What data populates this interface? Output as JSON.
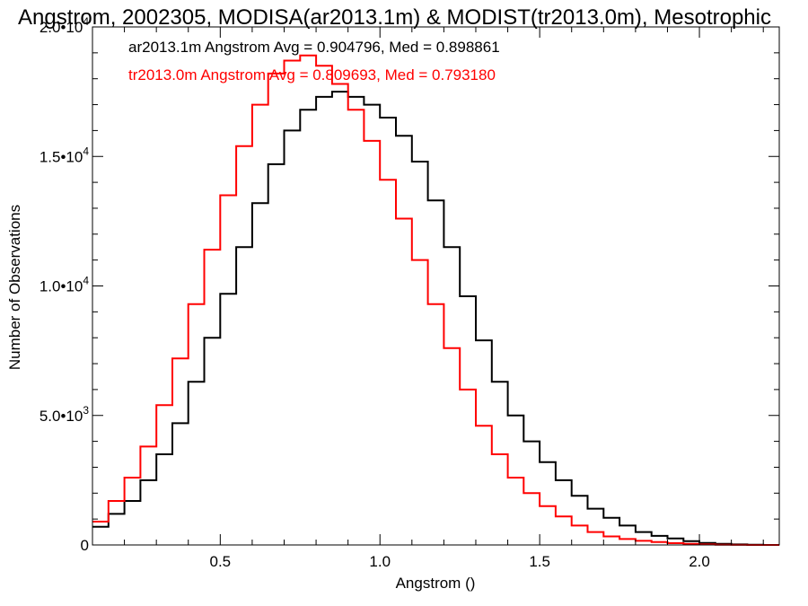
{
  "chart_data": {
    "type": "line",
    "title": "Angstrom, 2002305, MODISA(ar2013.1m) & MODIST(tr2013.0m), Mesotrophic",
    "xlabel": "Angstrom ()",
    "ylabel": "Number of Observations",
    "xlim": [
      0.1,
      2.25
    ],
    "ylim": [
      0,
      20000
    ],
    "x_ticks": [
      {
        "value": 0.5,
        "label": "0.5"
      },
      {
        "value": 1.0,
        "label": "1.0"
      },
      {
        "value": 1.5,
        "label": "1.5"
      },
      {
        "value": 2.0,
        "label": "2.0"
      }
    ],
    "y_ticks": [
      {
        "value": 0,
        "label": "0",
        "mantissa": "0",
        "exp": ""
      },
      {
        "value": 5000,
        "label": "5.0•10³",
        "mantissa": "5.0•10",
        "exp": "3"
      },
      {
        "value": 10000,
        "label": "1.0•10⁴",
        "mantissa": "1.0•10",
        "exp": "4"
      },
      {
        "value": 15000,
        "label": "1.5•10⁴",
        "mantissa": "1.5•10",
        "exp": "4"
      },
      {
        "value": 20000,
        "label": "2.0•10⁴",
        "mantissa": "2.0•10",
        "exp": "4"
      }
    ],
    "grid": false,
    "step": true,
    "series": [
      {
        "name": "ar2013.1m",
        "color": "#000000",
        "legend_text": "ar2013.1m Angstrom Avg = 0.904796, Med = 0.898861",
        "x": [
          0.1,
          0.15,
          0.2,
          0.25,
          0.3,
          0.35,
          0.4,
          0.45,
          0.5,
          0.55,
          0.6,
          0.65,
          0.7,
          0.75,
          0.8,
          0.85,
          0.9,
          0.95,
          1.0,
          1.05,
          1.1,
          1.15,
          1.2,
          1.25,
          1.3,
          1.35,
          1.4,
          1.45,
          1.5,
          1.55,
          1.6,
          1.65,
          1.7,
          1.75,
          1.8,
          1.85,
          1.9,
          1.95,
          2.0,
          2.05,
          2.1,
          2.15,
          2.2,
          2.25
        ],
        "y": [
          700,
          1200,
          1700,
          2500,
          3500,
          4700,
          6300,
          8000,
          9700,
          11500,
          13200,
          14700,
          16000,
          16800,
          17300,
          17500,
          17300,
          17000,
          16500,
          15800,
          14800,
          13300,
          11500,
          9600,
          7900,
          6300,
          5000,
          4000,
          3200,
          2500,
          1900,
          1400,
          1050,
          750,
          500,
          350,
          250,
          150,
          80,
          40,
          20,
          10,
          0,
          0
        ]
      },
      {
        "name": "tr2013.0m",
        "color": "#ff0000",
        "legend_text": "tr2013.0m Angstrom Avg = 0.809693, Med = 0.793180",
        "x": [
          0.1,
          0.15,
          0.2,
          0.25,
          0.3,
          0.35,
          0.4,
          0.45,
          0.5,
          0.55,
          0.6,
          0.65,
          0.7,
          0.75,
          0.8,
          0.85,
          0.9,
          0.95,
          1.0,
          1.05,
          1.1,
          1.15,
          1.2,
          1.25,
          1.3,
          1.35,
          1.4,
          1.45,
          1.5,
          1.55,
          1.6,
          1.65,
          1.7,
          1.75,
          1.8,
          1.85,
          1.9,
          1.95,
          2.0,
          2.05,
          2.1,
          2.15,
          2.2,
          2.25
        ],
        "y": [
          900,
          1700,
          2600,
          3800,
          5400,
          7200,
          9300,
          11400,
          13500,
          15400,
          17000,
          18200,
          18700,
          18900,
          18500,
          17800,
          16800,
          15600,
          14100,
          12600,
          11000,
          9300,
          7600,
          6000,
          4600,
          3500,
          2600,
          2000,
          1500,
          1100,
          750,
          500,
          330,
          230,
          160,
          110,
          70,
          40,
          20,
          10,
          5,
          0,
          0,
          0
        ]
      }
    ]
  }
}
